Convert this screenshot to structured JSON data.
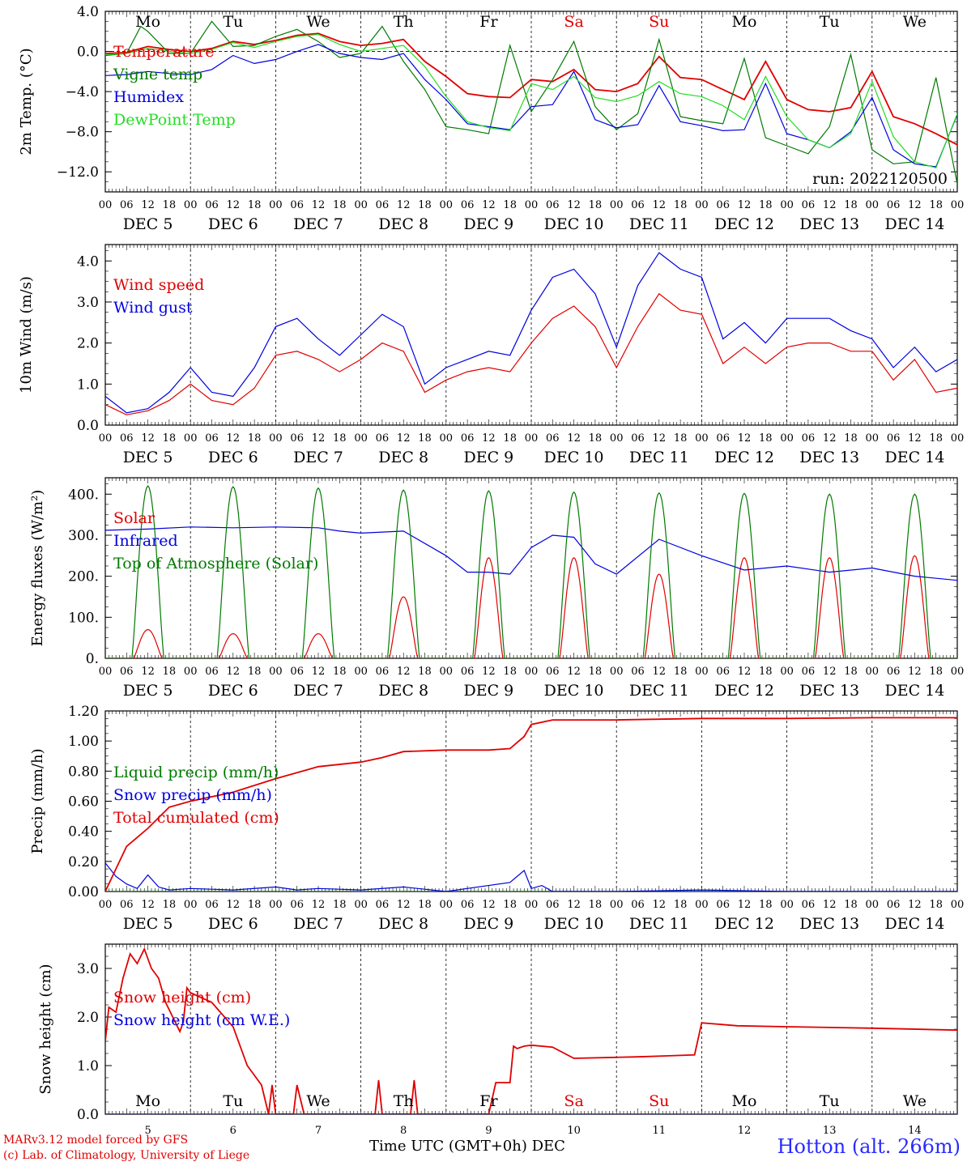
{
  "axis_colors": {
    "frame": "#000000",
    "red": "#e00000",
    "green": "#007a00",
    "blue": "#0000e0",
    "lightgreen": "#22dd22"
  },
  "day_abbrev": [
    "Mo",
    "Tu",
    "We",
    "Th",
    "Fr",
    "Sa",
    "Su",
    "Mo",
    "Tu",
    "We"
  ],
  "weekend_days": [
    5,
    6
  ],
  "date_labels": [
    "DEC  5",
    "DEC  6",
    "DEC  7",
    "DEC  8",
    "DEC  9",
    "DEC 10",
    "DEC 11",
    "DEC 12",
    "DEC 13",
    "DEC 14"
  ],
  "hour_ticks": [
    "00",
    "06",
    "12",
    "18"
  ],
  "bottom_day_numbers": [
    "5",
    "6",
    "7",
    "8",
    "9",
    "10",
    "11",
    "12",
    "13",
    "14"
  ],
  "run_label": "run: 2022120500",
  "x_title": "Time UTC (GMT+0h)",
  "x_title_month": "DEC",
  "credit_line1": "MARv3.12 model forced by GFS",
  "credit_line2": "(c) Lab. of Climatology, University of Liege",
  "station": "Hotton (alt. 266m)",
  "chart_data": [
    {
      "type": "line",
      "ylabel": "2m Temp. (°C)",
      "ylim": [
        -14,
        4
      ],
      "yticks": [
        4.0,
        0.0,
        -4.0,
        -8.0,
        -12.0
      ],
      "ytick_labels": [
        "4.0",
        "0.0",
        "−4.0",
        "−8.0",
        "−12.0"
      ],
      "zero_line": true,
      "x_unit": "hours since Dec 5 00 UTC",
      "legend_position": "left",
      "series": [
        {
          "name": "Temperature",
          "color": "#e00000",
          "x": [
            0,
            6,
            12,
            18,
            24,
            30,
            36,
            42,
            48,
            54,
            60,
            66,
            72,
            78,
            84,
            90,
            96,
            102,
            108,
            114,
            120,
            126,
            132,
            138,
            144,
            150,
            156,
            162,
            168,
            174,
            180,
            186,
            192,
            198,
            204,
            210,
            216,
            222,
            228,
            234,
            240
          ],
          "y": [
            -0.2,
            -0.1,
            0.5,
            0.2,
            0.0,
            0.3,
            1.0,
            0.7,
            1.1,
            1.6,
            1.8,
            1.0,
            0.6,
            0.8,
            1.2,
            -1.0,
            -2.5,
            -4.2,
            -4.5,
            -4.6,
            -2.8,
            -3.0,
            -1.8,
            -3.8,
            -4.0,
            -3.2,
            -0.5,
            -2.6,
            -2.8,
            -3.8,
            -4.8,
            -1.0,
            -4.8,
            -5.8,
            -6.0,
            -5.6,
            -2.0,
            -6.5,
            -7.2,
            -8.2,
            -9.3
          ]
        },
        {
          "name": "Vigne temp",
          "color": "#007a00",
          "x": [
            0,
            6,
            10,
            12,
            18,
            24,
            30,
            36,
            42,
            48,
            54,
            60,
            66,
            72,
            78,
            84,
            90,
            96,
            102,
            108,
            114,
            120,
            126,
            132,
            138,
            144,
            150,
            156,
            162,
            168,
            174,
            180,
            186,
            192,
            198,
            204,
            210,
            216,
            222,
            228,
            234,
            240
          ],
          "y": [
            -0.4,
            -0.2,
            2.5,
            2.0,
            -0.2,
            -0.2,
            3.0,
            0.5,
            0.6,
            1.5,
            2.2,
            1.0,
            -0.6,
            -0.2,
            2.5,
            -1.0,
            -3.8,
            -7.5,
            -7.8,
            -8.2,
            0.6,
            -6.0,
            -2.8,
            1.0,
            -5.5,
            -7.8,
            -6.2,
            1.2,
            -6.5,
            -6.9,
            -7.2,
            -0.7,
            -8.6,
            -9.4,
            -10.2,
            -7.5,
            -0.3,
            -9.8,
            -11.2,
            -11.0,
            -2.6,
            -13.2
          ]
        },
        {
          "name": "Humidex",
          "color": "#0000e0",
          "x": [
            0,
            6,
            12,
            18,
            24,
            30,
            36,
            42,
            48,
            54,
            60,
            66,
            72,
            78,
            84,
            90,
            96,
            102,
            108,
            114,
            120,
            126,
            132,
            138,
            144,
            150,
            156,
            162,
            168,
            174,
            180,
            186,
            192,
            198,
            204,
            210,
            216,
            222,
            228,
            234,
            240
          ],
          "y": [
            -2.4,
            -2.3,
            -2.0,
            -2.2,
            -2.3,
            -1.8,
            -0.4,
            -1.2,
            -0.8,
            0.0,
            0.7,
            -0.2,
            -0.6,
            -0.8,
            -0.2,
            -2.8,
            -4.8,
            -7.2,
            -7.5,
            -7.8,
            -5.5,
            -5.3,
            -2.0,
            -6.8,
            -7.6,
            -7.3,
            -3.4,
            -7.0,
            -7.4,
            -7.9,
            -7.8,
            -3.2,
            -8.2,
            -8.8,
            -9.6,
            -8.0,
            -4.6,
            -9.8,
            -11.2,
            -11.5,
            -6.3
          ]
        },
        {
          "name": "DewPoint Temp",
          "color": "#22dd22",
          "x": [
            0,
            6,
            12,
            18,
            24,
            30,
            36,
            42,
            48,
            54,
            60,
            66,
            72,
            78,
            84,
            90,
            96,
            102,
            108,
            114,
            120,
            126,
            132,
            138,
            144,
            150,
            156,
            162,
            168,
            174,
            180,
            186,
            192,
            198,
            204,
            210,
            216,
            222,
            228,
            234,
            240
          ],
          "y": [
            -0.3,
            -0.2,
            0.3,
            0.0,
            -0.2,
            0.2,
            0.9,
            0.4,
            1.0,
            1.5,
            1.7,
            0.7,
            0.0,
            0.3,
            0.6,
            -1.5,
            -4.5,
            -7.0,
            -7.6,
            -7.9,
            -3.2,
            -3.8,
            -2.5,
            -4.6,
            -5.0,
            -4.4,
            -3.0,
            -4.2,
            -4.5,
            -5.4,
            -6.8,
            -2.5,
            -6.5,
            -8.8,
            -9.6,
            -8.2,
            -3.0,
            -8.5,
            -11.0,
            -11.6,
            -6.2
          ]
        }
      ]
    },
    {
      "type": "line",
      "ylabel": "10m Wind (m/s)",
      "ylim": [
        0,
        4.4
      ],
      "yticks": [
        0.0,
        1.0,
        2.0,
        3.0,
        4.0
      ],
      "ytick_labels": [
        "0.0",
        "1.0",
        "2.0",
        "3.0",
        "4.0"
      ],
      "x_unit": "hours since Dec 5 00 UTC",
      "legend_position": "left",
      "series": [
        {
          "name": "Wind speed",
          "color": "#e00000",
          "x": [
            0,
            6,
            12,
            18,
            24,
            30,
            36,
            42,
            48,
            54,
            60,
            66,
            72,
            78,
            84,
            90,
            96,
            102,
            108,
            114,
            120,
            126,
            132,
            138,
            144,
            150,
            156,
            162,
            168,
            174,
            180,
            186,
            192,
            198,
            204,
            210,
            216,
            222,
            228,
            234,
            240
          ],
          "y": [
            0.5,
            0.25,
            0.35,
            0.6,
            1.0,
            0.6,
            0.5,
            0.9,
            1.7,
            1.8,
            1.6,
            1.3,
            1.6,
            2.0,
            1.8,
            0.8,
            1.1,
            1.3,
            1.4,
            1.3,
            2.0,
            2.6,
            2.9,
            2.4,
            1.4,
            2.4,
            3.2,
            2.8,
            2.7,
            1.5,
            1.9,
            1.5,
            1.9,
            2.0,
            2.0,
            1.8,
            1.8,
            1.1,
            1.6,
            0.8,
            0.9
          ]
        },
        {
          "name": "Wind gust",
          "color": "#0000e0",
          "x": [
            0,
            6,
            12,
            18,
            24,
            30,
            36,
            42,
            48,
            54,
            60,
            66,
            72,
            78,
            84,
            90,
            96,
            102,
            108,
            114,
            120,
            126,
            132,
            138,
            144,
            150,
            156,
            162,
            168,
            174,
            180,
            186,
            192,
            198,
            204,
            210,
            216,
            222,
            228,
            234,
            240
          ],
          "y": [
            0.7,
            0.3,
            0.4,
            0.8,
            1.4,
            0.8,
            0.7,
            1.4,
            2.4,
            2.6,
            2.1,
            1.7,
            2.2,
            2.7,
            2.4,
            1.0,
            1.4,
            1.6,
            1.8,
            1.7,
            2.8,
            3.6,
            3.8,
            3.2,
            1.9,
            3.4,
            4.2,
            3.8,
            3.6,
            2.1,
            2.5,
            2.0,
            2.6,
            2.6,
            2.6,
            2.3,
            2.1,
            1.4,
            1.9,
            1.3,
            1.6
          ]
        }
      ]
    },
    {
      "type": "line",
      "ylabel": "Energy fluxes (W/m²)",
      "ylim": [
        0,
        440
      ],
      "yticks": [
        0,
        100,
        200,
        300,
        400
      ],
      "ytick_labels": [
        "0.",
        "100.",
        "200.",
        "300.",
        "400."
      ],
      "x_unit": "hours since Dec 5 00 UTC",
      "legend_position": "left",
      "series": [
        {
          "name": "Solar",
          "color": "#e00000",
          "daily_peak": [
            70,
            60,
            60,
            150,
            245,
            245,
            205,
            245,
            245,
            250
          ]
        },
        {
          "name": "Infrared",
          "color": "#0000e0",
          "x": [
            0,
            12,
            24,
            36,
            48,
            60,
            66,
            72,
            84,
            96,
            102,
            108,
            114,
            120,
            126,
            132,
            138,
            144,
            156,
            168,
            180,
            192,
            204,
            216,
            228,
            240
          ],
          "y": [
            312,
            315,
            320,
            318,
            320,
            318,
            310,
            305,
            310,
            250,
            210,
            210,
            205,
            270,
            300,
            295,
            230,
            205,
            290,
            250,
            215,
            225,
            210,
            220,
            200,
            190
          ]
        },
        {
          "name": "Top of Atmosphere (Solar)",
          "color": "#007a00",
          "daily_peak": [
            420,
            418,
            415,
            410,
            408,
            405,
            403,
            402,
            400,
            400
          ]
        }
      ]
    },
    {
      "type": "line",
      "ylabel": "Precip (mm/h)",
      "ylim": [
        0,
        1.2
      ],
      "yticks": [
        0,
        0.2,
        0.4,
        0.6,
        0.8,
        1.0,
        1.2
      ],
      "ytick_labels": [
        "0.00",
        "0.20",
        "0.40",
        "0.60",
        "0.80",
        "1.00",
        "1.20"
      ],
      "x_unit": "hours since Dec 5 00 UTC",
      "legend_position": "left",
      "series": [
        {
          "name": "Liquid precip (mm/h)",
          "color": "#007a00",
          "x": [
            0,
            240
          ],
          "y": [
            0,
            0
          ]
        },
        {
          "name": "Snow precip (mm/h)",
          "color": "#0000e0",
          "x": [
            0,
            3,
            6,
            9,
            12,
            15,
            18,
            24,
            36,
            48,
            54,
            60,
            72,
            84,
            96,
            114,
            118,
            120,
            123,
            126,
            144,
            168,
            192,
            216,
            240
          ],
          "y": [
            0.19,
            0.1,
            0.05,
            0.02,
            0.11,
            0.03,
            0.01,
            0.02,
            0.01,
            0.03,
            0.01,
            0.02,
            0.01,
            0.03,
            0.0,
            0.06,
            0.14,
            0.02,
            0.04,
            0.0,
            0.0,
            0.01,
            0.0,
            0.0,
            0.0
          ]
        },
        {
          "name": "Total cumulated (cm)",
          "color": "#e00000",
          "x": [
            0,
            6,
            12,
            18,
            24,
            36,
            48,
            60,
            72,
            78,
            84,
            96,
            108,
            114,
            118,
            120,
            126,
            144,
            168,
            192,
            216,
            240
          ],
          "y": [
            0.0,
            0.3,
            0.42,
            0.56,
            0.6,
            0.66,
            0.75,
            0.83,
            0.86,
            0.89,
            0.93,
            0.94,
            0.94,
            0.95,
            1.03,
            1.11,
            1.14,
            1.14,
            1.15,
            1.15,
            1.155,
            1.155
          ]
        }
      ]
    },
    {
      "type": "line",
      "ylabel": "Snow height (cm)",
      "ylim": [
        0,
        3.5
      ],
      "yticks": [
        0.0,
        1.0,
        2.0,
        3.0
      ],
      "ytick_labels": [
        "0.0",
        "1.0",
        "2.0",
        "3.0"
      ],
      "x_unit": "hours since Dec 5 00 UTC",
      "legend_position": "left",
      "series": [
        {
          "name": "Snow height (cm)",
          "color": "#e00000",
          "x": [
            0,
            1,
            3,
            5,
            7,
            9,
            11,
            13,
            15,
            17,
            19,
            21,
            22,
            23,
            24,
            30,
            36,
            40,
            44,
            46,
            47,
            48,
            52,
            53,
            54,
            56,
            60,
            70,
            76,
            77,
            78,
            80,
            86,
            87,
            88,
            108,
            110,
            114,
            115,
            116,
            118,
            120,
            126,
            132,
            144,
            150,
            158,
            166,
            168,
            178,
            192,
            216,
            240
          ],
          "y": [
            1.5,
            2.2,
            2.1,
            2.8,
            3.3,
            3.1,
            3.4,
            3.0,
            2.8,
            2.3,
            2.0,
            1.7,
            1.9,
            2.6,
            2.5,
            2.3,
            1.8,
            1.0,
            0.6,
            0.0,
            0.6,
            0.0,
            0.0,
            0.0,
            0.6,
            0.0,
            0.0,
            0.0,
            0.0,
            0.7,
            0.0,
            0.0,
            0.0,
            0.7,
            0.0,
            0.0,
            0.65,
            0.65,
            1.4,
            1.35,
            1.4,
            1.42,
            1.38,
            1.15,
            1.17,
            1.18,
            1.2,
            1.22,
            1.88,
            1.82,
            1.8,
            1.77,
            1.73
          ]
        },
        {
          "name": "Snow height (cm W.E.)",
          "color": "#0000e0",
          "x": [
            0,
            240
          ],
          "y": [
            0,
            0
          ]
        }
      ]
    }
  ]
}
